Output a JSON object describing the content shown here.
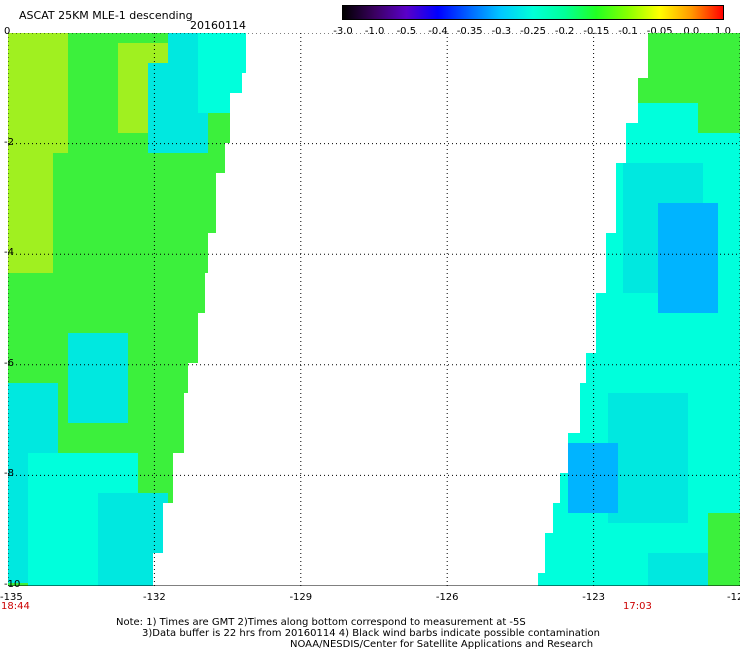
{
  "header": {
    "title": "ASCAT 25KM MLE-1 descending",
    "date": "20160114"
  },
  "colorbar": {
    "labels": [
      "-3.0",
      "-1.0",
      "-0.5",
      "-0.4",
      "-0.35",
      "-0.3",
      "-0.25",
      "-0.2",
      "-0.15",
      "-0.1",
      "-0.05",
      "0.0",
      "1.0"
    ],
    "gradient": [
      "#000000",
      "#3a0060",
      "#5a00c8",
      "#0000ff",
      "#0066ff",
      "#00c8ff",
      "#00ffd8",
      "#00ff99",
      "#22ff22",
      "#88ff00",
      "#ffff00",
      "#ff9900",
      "#ff0000"
    ]
  },
  "map": {
    "lat_labels": [
      "0",
      "-2",
      "-4",
      "-6",
      "-8",
      "-10"
    ],
    "lon_labels": [
      "-135",
      "-132",
      "-129",
      "-126",
      "-123",
      "-12"
    ],
    "left_time": "18:44",
    "right_time": "17:03",
    "colors": {
      "green": "#3cf03c",
      "yellow_green": "#a0f020",
      "cyan": "#00ffdc",
      "teal": "#00e8e0",
      "blue": "#00b4ff"
    }
  },
  "notes": {
    "line1": "Note: 1) Times are GMT 2)Times along bottom correspond to measurement at -5S",
    "line2": "3)Data buffer is 22 hrs from 20160114 4) Black wind barbs indicate possible contamination",
    "line3": "NOAA/NESDIS/Center for Satellite Applications and Research"
  }
}
